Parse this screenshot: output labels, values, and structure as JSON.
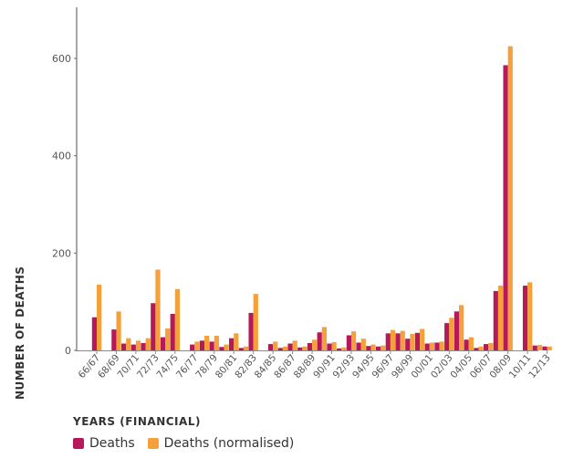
{
  "chart_data": {
    "type": "bar",
    "xlabel": "YEARS (FINANCIAL)",
    "ylabel": "NUMBER OF DEATHS",
    "ylim": [
      0,
      700
    ],
    "yticks": [
      0,
      200,
      400,
      600
    ],
    "grid": false,
    "legend_position": "bottom-left",
    "categories": [
      "66/67",
      "67/68",
      "68/69",
      "69/70",
      "70/71",
      "71/72",
      "72/73",
      "73/74",
      "74/75",
      "75/76",
      "76/77",
      "77/78",
      "78/79",
      "79/80",
      "80/81",
      "81/82",
      "82/83",
      "83/84",
      "84/85",
      "85/86",
      "86/87",
      "87/88",
      "88/89",
      "89/90",
      "90/91",
      "91/92",
      "92/93",
      "93/94",
      "94/95",
      "95/96",
      "96/97",
      "97/98",
      "98/99",
      "99/00",
      "00/01",
      "01/02",
      "02/03",
      "03/04",
      "04/05",
      "05/06",
      "06/07",
      "07/08",
      "08/09",
      "09/10",
      "10/11",
      "11/12",
      "12/13"
    ],
    "tick_labels": [
      "66/67",
      "68/69",
      "70/71",
      "72/73",
      "74/75",
      "76/77",
      "78/79",
      "80/81",
      "82/83",
      "84/85",
      "86/87",
      "88/89",
      "90/91",
      "92/93",
      "94/95",
      "96/97",
      "98/99",
      "00/01",
      "02/03",
      "04/05",
      "06/07",
      "08/09",
      "10/11",
      "12/13"
    ],
    "series": [
      {
        "name": "Deaths",
        "color": "#b5195a",
        "values": [
          68,
          0,
          43,
          14,
          12,
          15,
          97,
          27,
          75,
          0,
          12,
          20,
          18,
          7,
          25,
          5,
          77,
          0,
          13,
          5,
          14,
          6,
          15,
          37,
          14,
          4,
          31,
          16,
          9,
          8,
          35,
          35,
          24,
          36,
          14,
          16,
          56,
          80,
          22,
          5,
          13,
          122,
          586,
          0,
          133,
          10,
          8
        ]
      },
      {
        "name": "Deaths (normalised)",
        "color": "#f5a03a",
        "values": [
          135,
          0,
          80,
          25,
          20,
          25,
          166,
          45,
          126,
          0,
          18,
          30,
          30,
          12,
          35,
          8,
          116,
          0,
          18,
          8,
          20,
          8,
          22,
          48,
          17,
          6,
          39,
          24,
          12,
          10,
          42,
          40,
          34,
          44,
          16,
          18,
          67,
          93,
          27,
          8,
          15,
          133,
          625,
          0,
          140,
          11,
          8
        ]
      }
    ]
  },
  "legend": {
    "items": [
      {
        "label": "Deaths",
        "color": "#b5195a"
      },
      {
        "label": "Deaths (normalised)",
        "color": "#f5a03a"
      }
    ]
  }
}
